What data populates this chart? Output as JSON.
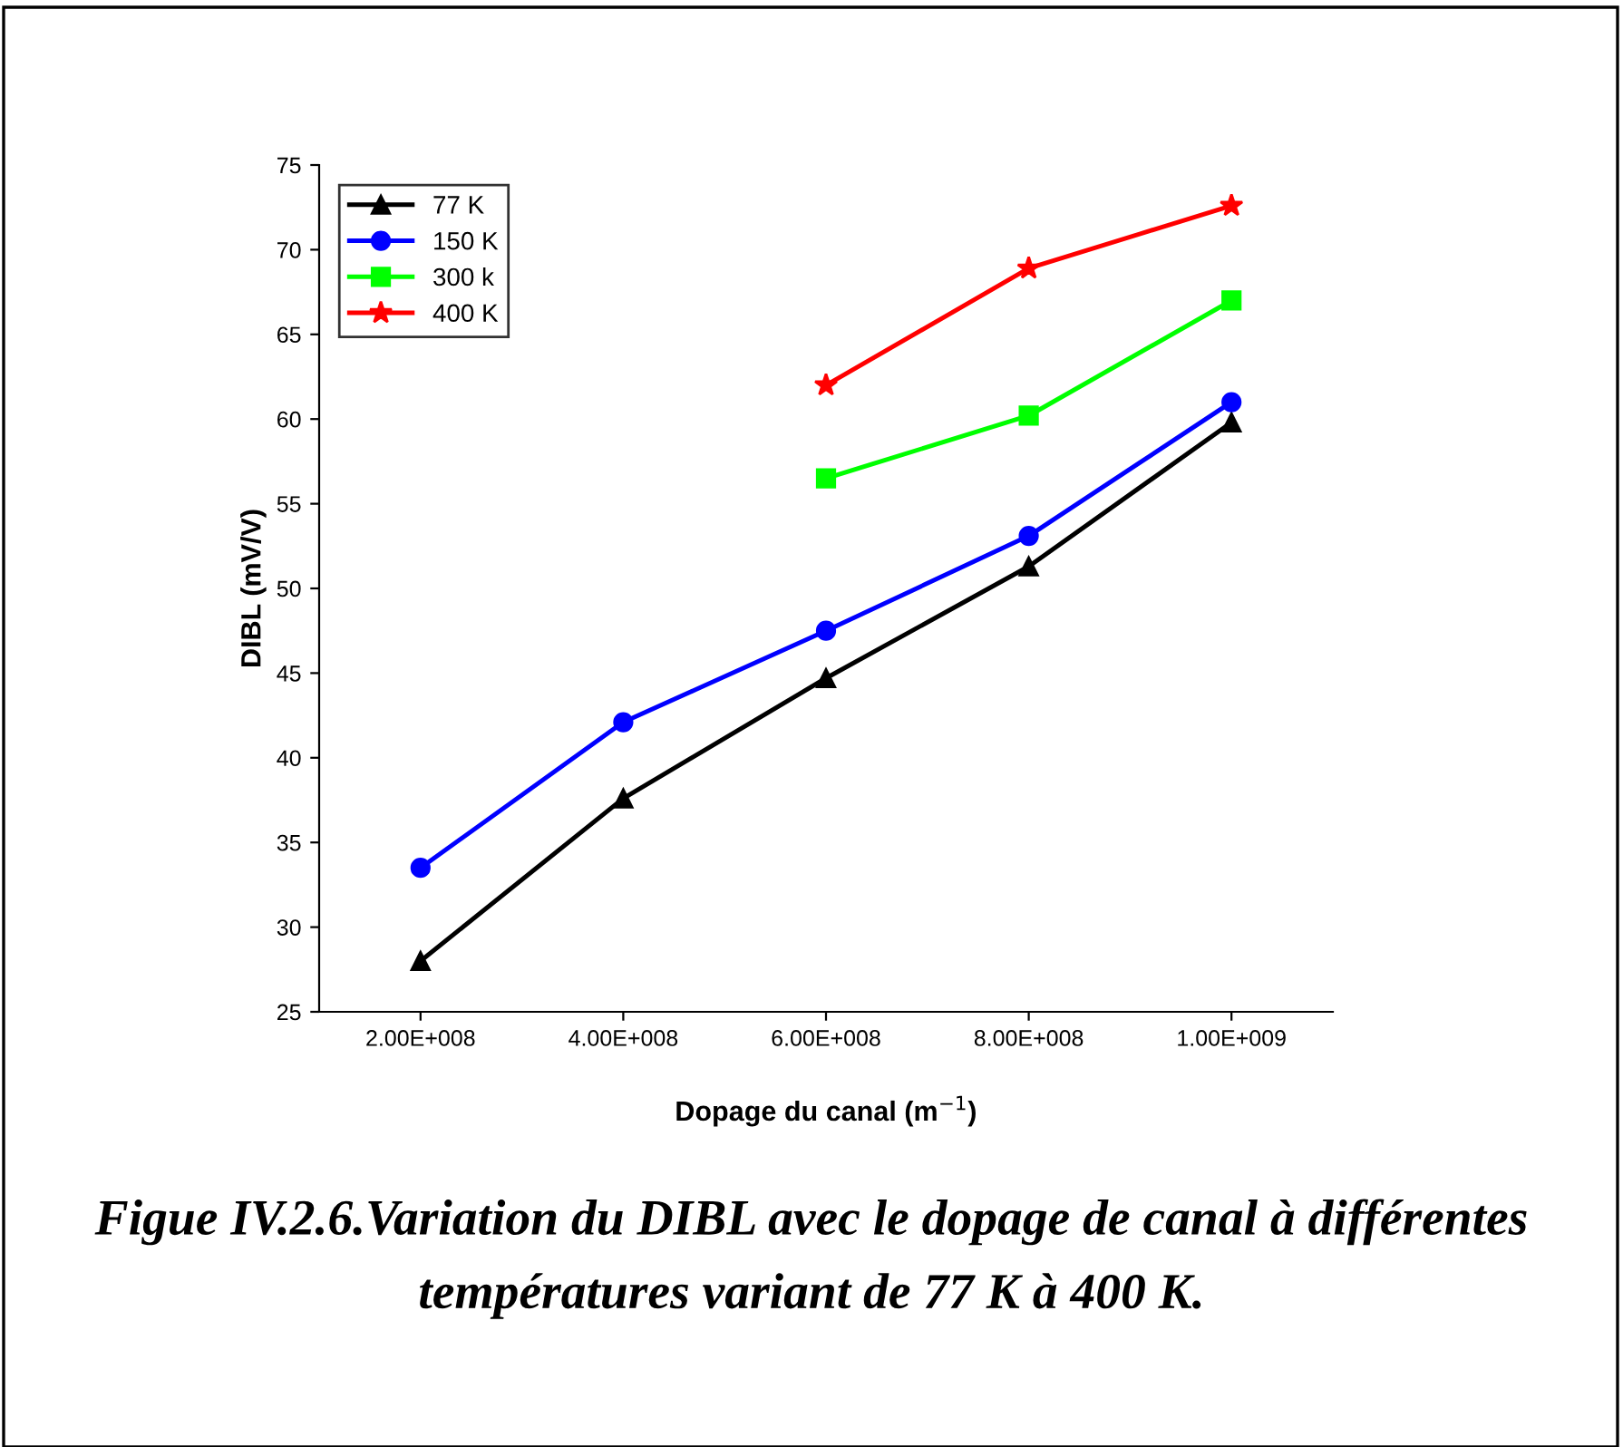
{
  "chart_data": {
    "type": "line",
    "xlabel": "Dopage du canal (m$^{−1}$)",
    "ylabel": "DIBL (mV/V)",
    "annotations": [
      "Figue IV.2.6.Variation du DIBL avec le dopage de canal à différentes températures variant de 77 K à 400 K."
    ],
    "x": [
      200000000,
      400000000,
      600000000,
      800000000,
      1000000000
    ],
    "series": [
      {
        "name": "77 K",
        "color": "#000000",
        "marker": "triangle",
        "values": [
          28.0,
          37.6,
          44.7,
          51.3,
          59.8
        ]
      },
      {
        "name": "150 K",
        "color": "#0000ff",
        "marker": "circle",
        "values": [
          33.5,
          42.1,
          47.5,
          53.1,
          61.0
        ]
      },
      {
        "name": "300 k",
        "color": "#00ff00",
        "marker": "square",
        "values": [
          null,
          null,
          56.5,
          60.2,
          67.0
        ]
      },
      {
        "name": "400 K",
        "color": "#ff0000",
        "marker": "star",
        "values": [
          null,
          null,
          62.0,
          68.9,
          72.6
        ]
      }
    ],
    "xlim": [
      100000000,
      1100000000
    ],
    "xticks": [
      {
        "value": 200000000,
        "label": "2.00E+008"
      },
      {
        "value": 400000000,
        "label": "4.00E+008"
      },
      {
        "value": 600000000,
        "label": "6.00E+008"
      },
      {
        "value": 800000000,
        "label": "8.00E+008"
      },
      {
        "value": 1000000000,
        "label": "1.00E+009"
      }
    ],
    "ylim": [
      25,
      75
    ],
    "yticks": [
      25,
      30,
      35,
      40,
      45,
      50,
      55,
      60,
      65,
      70,
      75
    ],
    "grid": false,
    "legend": "top left",
    "line_style": "solid"
  }
}
